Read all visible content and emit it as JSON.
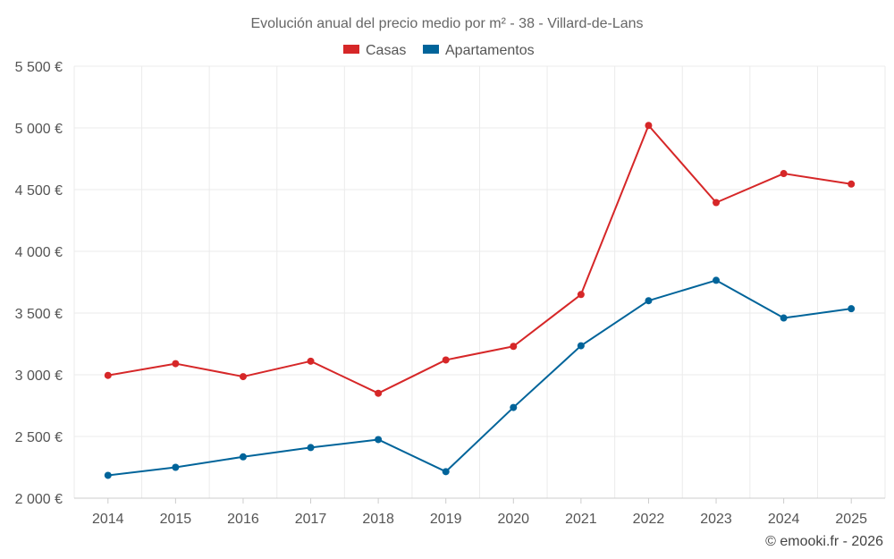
{
  "chart_data": {
    "type": "line",
    "title": "Evolución anual del precio medio por m² - 38 - Villard-de-Lans",
    "categories": [
      "2014",
      "2015",
      "2016",
      "2017",
      "2018",
      "2019",
      "2020",
      "2021",
      "2022",
      "2023",
      "2024",
      "2025"
    ],
    "series": [
      {
        "name": "Casas",
        "color": "#d62728",
        "values": [
          2995,
          3090,
          2985,
          3110,
          2850,
          3120,
          3230,
          3650,
          5020,
          4395,
          4630,
          4545
        ]
      },
      {
        "name": "Apartamentos",
        "color": "#00649a",
        "values": [
          2185,
          2250,
          2335,
          2410,
          2475,
          2215,
          2735,
          3235,
          3600,
          3765,
          3460,
          3535
        ]
      }
    ],
    "ylim": [
      2000,
      5500
    ],
    "yticks": [
      2000,
      2500,
      3000,
      3500,
      4000,
      4500,
      5000,
      5500
    ],
    "ytick_labels": [
      "2 000 €",
      "2 500 €",
      "3 000 €",
      "3 500 €",
      "4 000 €",
      "4 500 €",
      "5 000 €",
      "5 500 €"
    ],
    "xlabel": "",
    "ylabel": "",
    "grid": true,
    "legend_position": "top-center"
  },
  "credit": "© emooki.fr - 2026"
}
